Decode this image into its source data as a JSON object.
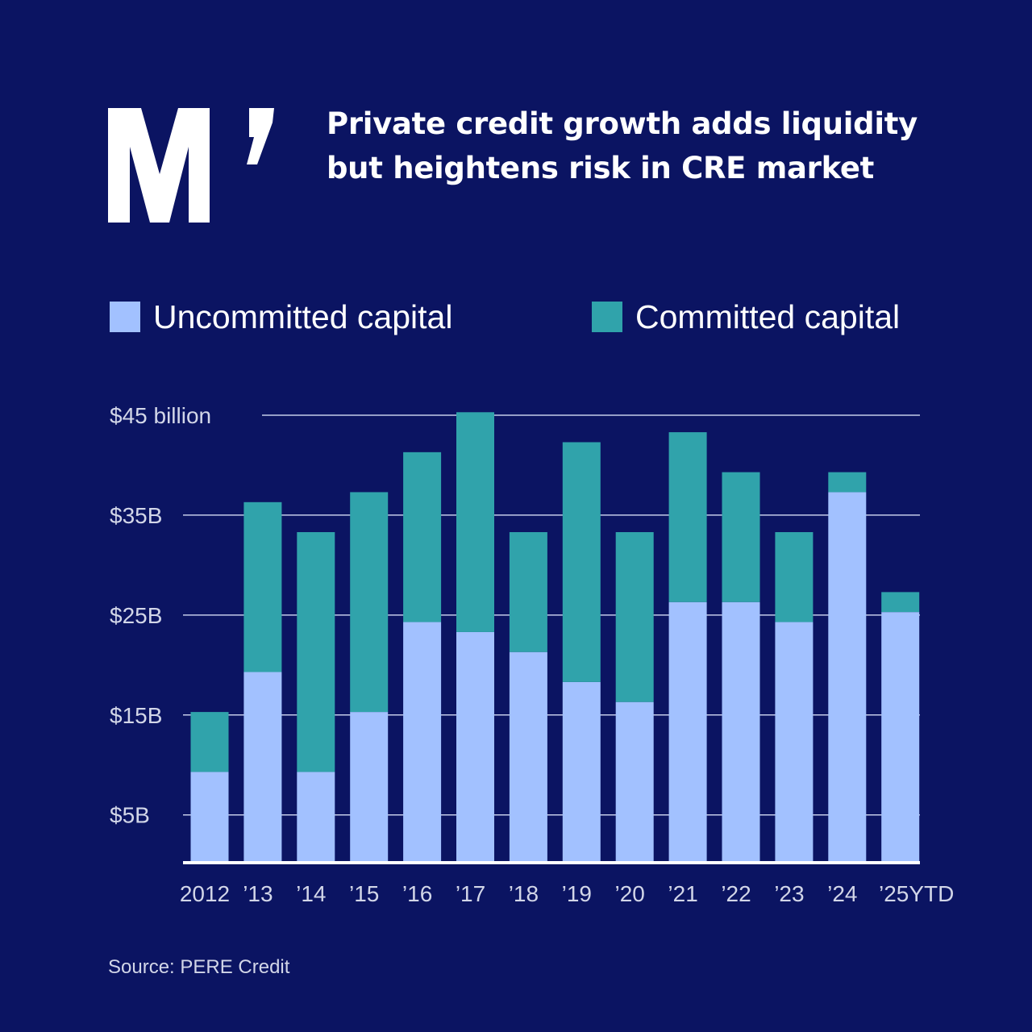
{
  "header": {
    "logo_text": "M’",
    "title_line1": "Private credit growth adds liquidity",
    "title_line2": "but heightens risk in CRE market"
  },
  "legend": {
    "uncommitted_label": "Uncommitted capital",
    "committed_label": "Committed capital"
  },
  "colors": {
    "background": "#0b1462",
    "uncommitted": "#a2c1ff",
    "committed": "#30a3ab",
    "gridline": "#c3cbe8",
    "tick_text": "#d2d6e8"
  },
  "source": "Source: PERE Credit",
  "chart_data": {
    "type": "bar",
    "stacked": true,
    "categories": [
      "2012",
      "’13",
      "’14",
      "’15",
      "’16",
      "’17",
      "’18",
      "’19",
      "’20",
      "’21",
      "’22",
      "’23",
      "’24",
      "’25YTD"
    ],
    "series": [
      {
        "name": "Uncommitted capital",
        "values": [
          9,
          19,
          9,
          15,
          24,
          23,
          21,
          18,
          16,
          26,
          26,
          24,
          37,
          25
        ]
      },
      {
        "name": "Committed capital",
        "values": [
          6,
          17,
          24,
          22,
          17,
          22,
          12,
          24,
          17,
          17,
          13,
          9,
          2,
          2
        ]
      }
    ],
    "y_ticks": [
      {
        "value": 45,
        "label": "$45 billion"
      },
      {
        "value": 35,
        "label": "$35B"
      },
      {
        "value": 25,
        "label": "$25B"
      },
      {
        "value": 15,
        "label": "$15B"
      },
      {
        "value": 5,
        "label": "$5B"
      }
    ],
    "ylim": [
      0.3,
      45
    ],
    "grid": true,
    "legend_position": "top"
  }
}
